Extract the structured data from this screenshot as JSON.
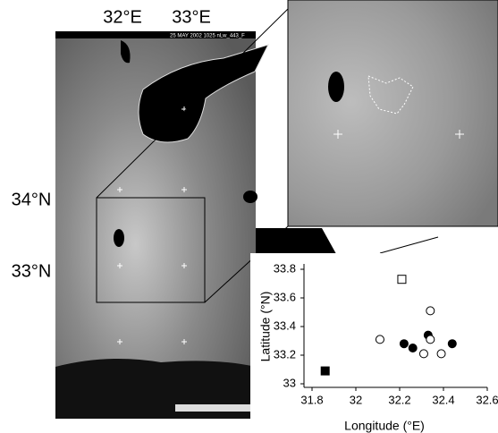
{
  "chart_data": {
    "type": "scatter",
    "x_label": "Longitude (°E)",
    "y_label": "Latitude (°N)",
    "xlim": [
      31.8,
      32.6
    ],
    "xticks": [
      31.8,
      32,
      32.2,
      32.4,
      32.6
    ],
    "ylim": [
      33,
      33.8
    ],
    "yticks": [
      33,
      33.2,
      33.4,
      33.6,
      33.8
    ],
    "series": [
      {
        "color": "#000000",
        "marker": "circle",
        "filled": true,
        "x": [
          32.22,
          32.26,
          32.33,
          32.44
        ],
        "values": [
          33.28,
          33.25,
          33.34,
          33.28
        ]
      },
      {
        "color": "#000000",
        "marker": "circle",
        "filled": false,
        "x": [
          32.11,
          32.34,
          32.34,
          32.31,
          32.39
        ],
        "values": [
          33.31,
          33.51,
          33.31,
          33.21,
          33.21
        ]
      },
      {
        "color": "#000000",
        "marker": "square",
        "filled": false,
        "x": [
          32.21
        ],
        "values": [
          33.73
        ]
      },
      {
        "color": "#000000",
        "marker": "square",
        "filled": true,
        "x": [
          31.86
        ],
        "values": [
          33.09
        ]
      }
    ]
  },
  "map": {
    "header": "25 MAY 2002 1025 nLw_443_F",
    "lon_labels": [
      "32°E",
      "33°E"
    ],
    "lat_labels": [
      "34°N",
      "33°N"
    ]
  }
}
